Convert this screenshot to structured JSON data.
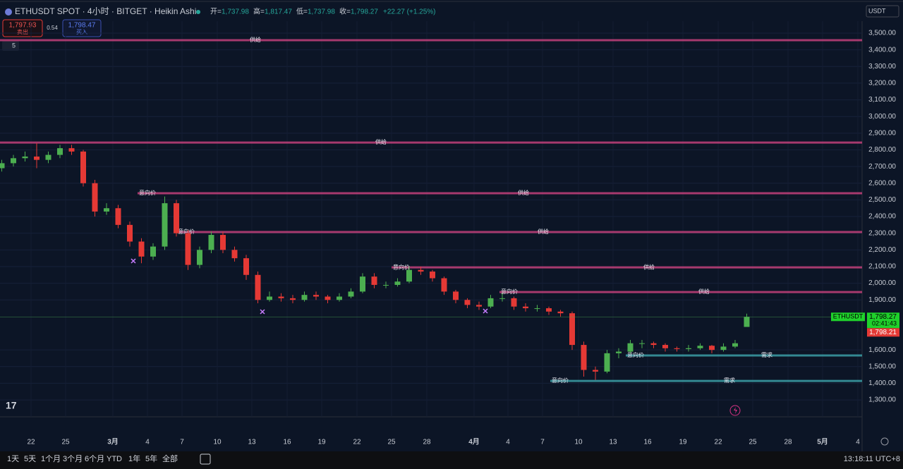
{
  "header": {
    "symbol": "ETHUSDT SPOT · 4小时 · BITGET · Heikin Ashi",
    "ohlc": [
      {
        "label": "开=",
        "value": "1,737.98"
      },
      {
        "label": "高=",
        "value": "1,817.47"
      },
      {
        "label": "低=",
        "value": "1,737.98"
      },
      {
        "label": "收=",
        "value": "1,798.27"
      }
    ],
    "change": "+22.27 (+1.25%)",
    "sell": {
      "price": "1,797.93",
      "label": "卖出"
    },
    "spread": "0.54",
    "buy": {
      "price": "1,798.47",
      "label": "买入"
    },
    "indicators": "5",
    "currency": "USDT"
  },
  "chart_data": {
    "type": "candlestick",
    "up_color": "#4caf50",
    "down_color": "#e53935",
    "candles": [
      [
        2690,
        2740,
        2670,
        2720
      ],
      [
        2720,
        2770,
        2700,
        2750
      ],
      [
        2750,
        2790,
        2730,
        2760
      ],
      [
        2760,
        2840,
        2690,
        2740
      ],
      [
        2740,
        2790,
        2720,
        2770
      ],
      [
        2770,
        2830,
        2750,
        2810
      ],
      [
        2810,
        2830,
        2770,
        2790
      ],
      [
        2790,
        2800,
        2580,
        2600
      ],
      [
        2600,
        2620,
        2400,
        2430
      ],
      [
        2430,
        2480,
        2410,
        2450
      ],
      [
        2450,
        2470,
        2330,
        2350
      ],
      [
        2350,
        2370,
        2220,
        2250
      ],
      [
        2250,
        2270,
        2120,
        2160
      ],
      [
        2160,
        2240,
        2140,
        2220
      ],
      [
        2220,
        2520,
        2200,
        2480
      ],
      [
        2480,
        2500,
        2280,
        2300
      ],
      [
        2300,
        2320,
        2080,
        2110
      ],
      [
        2110,
        2220,
        2090,
        2200
      ],
      [
        2200,
        2310,
        2180,
        2290
      ],
      [
        2290,
        2310,
        2180,
        2200
      ],
      [
        2200,
        2220,
        2130,
        2150
      ],
      [
        2150,
        2170,
        2020,
        2050
      ],
      [
        2050,
        2070,
        1880,
        1900
      ],
      [
        1900,
        1950,
        1890,
        1920
      ],
      [
        1920,
        1940,
        1890,
        1910
      ],
      [
        1910,
        1930,
        1880,
        1900
      ],
      [
        1900,
        1950,
        1890,
        1930
      ],
      [
        1930,
        1950,
        1900,
        1920
      ],
      [
        1920,
        1930,
        1880,
        1900
      ],
      [
        1900,
        1940,
        1890,
        1920
      ],
      [
        1920,
        1970,
        1910,
        1950
      ],
      [
        1950,
        2060,
        1940,
        2040
      ],
      [
        2040,
        2060,
        1970,
        1990
      ],
      [
        1990,
        2010,
        1970,
        1990
      ],
      [
        1990,
        2030,
        1980,
        2010
      ],
      [
        2010,
        2100,
        2000,
        2080
      ],
      [
        2080,
        2100,
        2050,
        2070
      ],
      [
        2070,
        2080,
        2010,
        2030
      ],
      [
        2030,
        2040,
        1930,
        1950
      ],
      [
        1950,
        1960,
        1880,
        1900
      ],
      [
        1900,
        1910,
        1850,
        1870
      ],
      [
        1870,
        1890,
        1840,
        1860
      ],
      [
        1860,
        1930,
        1850,
        1910
      ],
      [
        1910,
        1940,
        1890,
        1910
      ],
      [
        1910,
        1920,
        1840,
        1860
      ],
      [
        1860,
        1880,
        1830,
        1850
      ],
      [
        1850,
        1870,
        1830,
        1850
      ],
      [
        1850,
        1860,
        1810,
        1830
      ],
      [
        1830,
        1840,
        1800,
        1820
      ],
      [
        1820,
        1830,
        1600,
        1630
      ],
      [
        1630,
        1650,
        1440,
        1480
      ],
      [
        1480,
        1500,
        1420,
        1470
      ],
      [
        1470,
        1600,
        1460,
        1580
      ],
      [
        1580,
        1610,
        1550,
        1590
      ],
      [
        1590,
        1660,
        1580,
        1640
      ],
      [
        1640,
        1660,
        1610,
        1640
      ],
      [
        1640,
        1650,
        1610,
        1630
      ],
      [
        1630,
        1640,
        1590,
        1610
      ],
      [
        1610,
        1620,
        1590,
        1605
      ],
      [
        1605,
        1630,
        1590,
        1610
      ],
      [
        1610,
        1640,
        1600,
        1625
      ],
      [
        1625,
        1630,
        1580,
        1600
      ],
      [
        1600,
        1640,
        1590,
        1620
      ],
      [
        1620,
        1660,
        1610,
        1640
      ],
      [
        1737.98,
        1817.47,
        1737.98,
        1798.27
      ]
    ],
    "ylim": [
      1203,
      3572
    ],
    "yticks": [
      {
        "value": 1300,
        "label": "1,300.00"
      },
      {
        "value": 1400,
        "label": "1,400.00"
      },
      {
        "value": 1500,
        "label": "1,500.00"
      },
      {
        "value": 1600,
        "label": "1,600.00"
      },
      {
        "value": 1900,
        "label": "1,900.00"
      },
      {
        "value": 2000,
        "label": "2,000.00"
      },
      {
        "value": 2100,
        "label": "2,100.00"
      },
      {
        "value": 2200,
        "label": "2,200.00"
      },
      {
        "value": 2300,
        "label": "2,300.00"
      },
      {
        "value": 2400,
        "label": "2,400.00"
      },
      {
        "value": 2500,
        "label": "2,500.00"
      },
      {
        "value": 2600,
        "label": "2,600.00"
      },
      {
        "value": 2700,
        "label": "2,700.00"
      },
      {
        "value": 2800,
        "label": "2,800.00"
      },
      {
        "value": 2900,
        "label": "2,900.00"
      },
      {
        "value": 3000,
        "label": "3,000.00"
      },
      {
        "value": 3100,
        "label": "3,100.00"
      },
      {
        "value": 3200,
        "label": "3,200.00"
      },
      {
        "value": 3300,
        "label": "3,300.00"
      },
      {
        "value": 3400,
        "label": "3,400.00"
      },
      {
        "value": 3500,
        "label": "3,500.00"
      }
    ],
    "x_labels": [
      "22",
      "25",
      "3月",
      "4",
      "7",
      "10",
      "13",
      "16",
      "19",
      "22",
      "25",
      "28",
      "4月",
      "4",
      "7",
      "10",
      "13",
      "16",
      "19",
      "22",
      "25",
      "28",
      "5月",
      "4"
    ],
    "levels": [
      {
        "price": 3458,
        "label": "供给",
        "color": "#c2407a"
      },
      {
        "price": 2844,
        "label": "供给",
        "color": "#c2407a"
      },
      {
        "price": 2540,
        "label": "供给",
        "start_label": "意向价",
        "color": "#c2407a"
      },
      {
        "price": 2307,
        "label": "供给",
        "start_label": "意向价",
        "color": "#c2407a"
      },
      {
        "price": 2095,
        "label": "供给",
        "start_label": "意向价",
        "color": "#c2407a"
      },
      {
        "price": 1947,
        "label": "供给",
        "start_label": "意向价",
        "color": "#c2407a"
      },
      {
        "price": 1567,
        "label": "需求",
        "start_label": "意向价",
        "color": "#3a9ea5"
      },
      {
        "price": 1414,
        "label": "需求",
        "start_label": "意向价",
        "color": "#3a9ea5"
      }
    ],
    "last_price": {
      "value": 1798.27,
      "label": "1,798.27"
    },
    "bid_price": {
      "value": 1798.21,
      "label": "1,798.21"
    },
    "symbol_tag": "ETHUSDT",
    "countdown": "02:41:43"
  },
  "toolbar": {
    "ranges": [
      "1天",
      "5天",
      "1个月",
      "3个月",
      "6个月",
      "YTD",
      "1年",
      "5年",
      "全部"
    ],
    "clock": "13:18:11 UTC+8"
  }
}
